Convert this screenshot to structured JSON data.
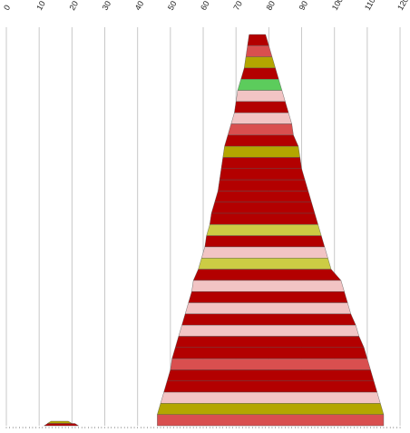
{
  "chart_data": {
    "type": "area",
    "title": "",
    "xlabel": "",
    "ylabel": "",
    "x_ticks": [
      "0",
      "10",
      "20",
      "30",
      "40",
      "50",
      "60",
      "70",
      "80",
      "90",
      "100",
      "110",
      "120"
    ],
    "xlim": [
      0,
      120
    ],
    "grid": "vertical",
    "palette": {
      "dark_red": "#b30000",
      "light_red": "#d94f4f",
      "olive": "#b3a600",
      "yellow": "#cccc44",
      "pink": "#f2c4c4",
      "green": "#5ccc5c"
    },
    "series": [
      {
        "comment_free": true,
        "bands": [
          {
            "left": 74.0,
            "right": 79.0,
            "color": "dark_red"
          },
          {
            "left": 73.5,
            "right": 80.0,
            "color": "light_red"
          },
          {
            "left": 73.0,
            "right": 81.0,
            "color": "olive"
          },
          {
            "left": 72.5,
            "right": 82.0,
            "color": "dark_red"
          },
          {
            "left": 71.5,
            "right": 83.0,
            "color": "green"
          },
          {
            "left": 70.5,
            "right": 84.0,
            "color": "pink"
          },
          {
            "left": 70.0,
            "right": 85.0,
            "color": "dark_red"
          },
          {
            "left": 69.5,
            "right": 86.0,
            "color": "pink"
          },
          {
            "left": 68.5,
            "right": 87.0,
            "color": "light_red"
          },
          {
            "left": 67.5,
            "right": 87.5,
            "color": "dark_red"
          },
          {
            "left": 66.5,
            "right": 89.0,
            "color": "olive"
          },
          {
            "left": 66.0,
            "right": 89.5,
            "color": "dark_red"
          },
          {
            "left": 65.5,
            "right": 90.0,
            "color": "dark_red"
          },
          {
            "left": 65.0,
            "right": 91.0,
            "color": "dark_red"
          },
          {
            "left": 64.5,
            "right": 92.0,
            "color": "dark_red"
          },
          {
            "left": 63.5,
            "right": 93.0,
            "color": "dark_red"
          },
          {
            "left": 62.5,
            "right": 94.0,
            "color": "dark_red"
          },
          {
            "left": 62.0,
            "right": 95.0,
            "color": "yellow"
          },
          {
            "left": 61.0,
            "right": 96.0,
            "color": "dark_red"
          },
          {
            "left": 60.5,
            "right": 97.0,
            "color": "pink"
          },
          {
            "left": 59.5,
            "right": 98.0,
            "color": "yellow"
          },
          {
            "left": 58.5,
            "right": 99.0,
            "color": "dark_red"
          },
          {
            "left": 57.0,
            "right": 102.0,
            "color": "pink"
          },
          {
            "left": 56.5,
            "right": 103.0,
            "color": "dark_red"
          },
          {
            "left": 55.5,
            "right": 104.0,
            "color": "pink"
          },
          {
            "left": 54.5,
            "right": 105.0,
            "color": "dark_red"
          },
          {
            "left": 53.5,
            "right": 106.5,
            "color": "pink"
          },
          {
            "left": 52.5,
            "right": 107.5,
            "color": "dark_red"
          },
          {
            "left": 51.5,
            "right": 109.0,
            "color": "dark_red"
          },
          {
            "left": 50.5,
            "right": 110.0,
            "color": "light_red"
          },
          {
            "left": 50.0,
            "right": 111.0,
            "color": "dark_red"
          },
          {
            "left": 49.0,
            "right": 112.0,
            "color": "dark_red"
          },
          {
            "left": 48.0,
            "right": 113.0,
            "color": "pink"
          },
          {
            "left": 47.0,
            "right": 114.0,
            "color": "olive"
          },
          {
            "left": 46.0,
            "right": 115.0,
            "color": "light_red"
          }
        ]
      },
      {
        "bands": [
          {
            "left": 12.5,
            "right": 20.0,
            "color": "olive"
          },
          {
            "left": 11.5,
            "right": 22.0,
            "color": "dark_red"
          }
        ]
      }
    ]
  }
}
